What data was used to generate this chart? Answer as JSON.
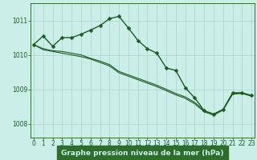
{
  "bg_color": "#cceee8",
  "grid_color": "#aad4cc",
  "line_color": "#1a5e20",
  "marker_color": "#1a5e20",
  "xlabel": "Graphe pression niveau de la mer (hPa)",
  "xlabel_bg": "#2d6e2d",
  "xlabel_text_color": "#cceee8",
  "tick_color": "#1a5e20",
  "xticks": [
    0,
    1,
    2,
    3,
    4,
    5,
    6,
    7,
    8,
    9,
    10,
    11,
    12,
    13,
    14,
    15,
    16,
    17,
    18,
    19,
    20,
    21,
    22,
    23
  ],
  "yticks": [
    1008,
    1009,
    1010,
    1011
  ],
  "ylim": [
    1007.6,
    1011.5
  ],
  "xlim": [
    -0.3,
    23.3
  ],
  "series_main": [
    1010.3,
    1010.55,
    1010.25,
    1010.5,
    1010.5,
    1010.6,
    1010.72,
    1010.85,
    1011.05,
    1011.12,
    1010.78,
    1010.42,
    1010.18,
    1010.05,
    1009.62,
    1009.55,
    1009.05,
    1008.75,
    1008.38,
    1008.28,
    1008.42,
    1008.9,
    1008.9,
    1008.82
  ],
  "series_line1": [
    1010.3,
    1010.18,
    1010.12,
    1010.1,
    1010.05,
    1010.0,
    1009.9,
    1009.82,
    1009.72,
    1009.52,
    1009.42,
    1009.32,
    1009.22,
    1009.12,
    1009.0,
    1008.88,
    1008.78,
    1008.62,
    1008.38,
    1008.28,
    1008.42,
    1008.88,
    1008.9,
    1008.82
  ],
  "series_line2": [
    1010.3,
    1010.15,
    1010.1,
    1010.05,
    1010.0,
    1009.95,
    1009.88,
    1009.78,
    1009.68,
    1009.48,
    1009.38,
    1009.28,
    1009.18,
    1009.08,
    1008.96,
    1008.84,
    1008.74,
    1008.58,
    1008.35,
    1008.25,
    1008.4,
    1008.86,
    1008.88,
    1008.8
  ],
  "main_linewidth": 1.0,
  "ref_linewidth": 0.8,
  "markersize": 2.5,
  "tick_fontsize": 5.5,
  "xlabel_fontsize": 6.5
}
